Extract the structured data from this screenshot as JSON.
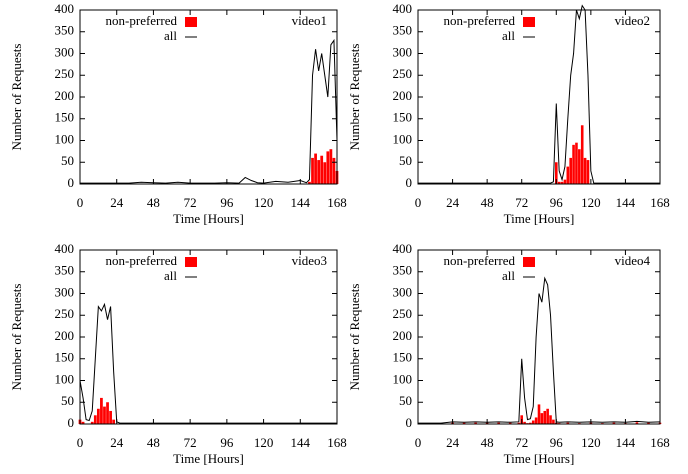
{
  "chart_data": [
    {
      "type": "combo",
      "title": "video1",
      "x_label": "Time [Hours]",
      "y_label": "Number of Requests",
      "legend": "top-left",
      "xlim": [
        0,
        168
      ],
      "ylim": [
        0,
        400
      ],
      "xticks": [
        0,
        24,
        48,
        72,
        96,
        120,
        144,
        168
      ],
      "yticks": [
        0,
        50,
        100,
        150,
        200,
        250,
        300,
        350,
        400
      ],
      "x": [
        0,
        8,
        16,
        24,
        32,
        40,
        48,
        56,
        64,
        72,
        80,
        88,
        96,
        104,
        108,
        112,
        116,
        120,
        128,
        136,
        144,
        148,
        150,
        152,
        154,
        156,
        158,
        160,
        162,
        164,
        166,
        168
      ],
      "series": [
        {
          "name": "non-preferred",
          "color": "#ff0000",
          "mark": "bar",
          "values": [
            0,
            0,
            0,
            0,
            0,
            0,
            0,
            0,
            0,
            0,
            0,
            0,
            0,
            0,
            0,
            0,
            0,
            0,
            0,
            0,
            0,
            0,
            5,
            60,
            70,
            55,
            65,
            50,
            75,
            80,
            60,
            30
          ]
        },
        {
          "name": "all",
          "color": "#000000",
          "mark": "line",
          "values": [
            2,
            2,
            2,
            2,
            2,
            4,
            3,
            2,
            4,
            2,
            2,
            2,
            3,
            2,
            15,
            8,
            3,
            2,
            6,
            4,
            8,
            3,
            10,
            250,
            310,
            260,
            300,
            250,
            200,
            320,
            330,
            100
          ]
        }
      ]
    },
    {
      "type": "combo",
      "title": "video2",
      "x_label": "Time [Hours]",
      "y_label": "Number of Requests",
      "legend": "top-left",
      "xlim": [
        0,
        168
      ],
      "ylim": [
        0,
        400
      ],
      "xticks": [
        0,
        24,
        48,
        72,
        96,
        120,
        144,
        168
      ],
      "yticks": [
        0,
        50,
        100,
        150,
        200,
        250,
        300,
        350,
        400
      ],
      "x": [
        0,
        8,
        16,
        24,
        32,
        40,
        48,
        56,
        64,
        72,
        80,
        88,
        92,
        94,
        96,
        98,
        100,
        102,
        104,
        106,
        108,
        110,
        112,
        114,
        116,
        118,
        120,
        122,
        128,
        136,
        144,
        152,
        160,
        168
      ],
      "series": [
        {
          "name": "non-preferred",
          "color": "#ff0000",
          "mark": "bar",
          "values": [
            0,
            0,
            0,
            0,
            0,
            0,
            0,
            0,
            0,
            0,
            0,
            0,
            0,
            0,
            50,
            5,
            5,
            10,
            40,
            60,
            90,
            95,
            80,
            135,
            60,
            55,
            0,
            0,
            0,
            0,
            0,
            0,
            0,
            0
          ]
        },
        {
          "name": "all",
          "color": "#000000",
          "mark": "line",
          "values": [
            2,
            2,
            2,
            2,
            2,
            2,
            2,
            2,
            2,
            2,
            2,
            2,
            2,
            5,
            185,
            30,
            10,
            40,
            150,
            250,
            300,
            400,
            380,
            410,
            400,
            250,
            30,
            2,
            2,
            2,
            2,
            2,
            2,
            2
          ]
        }
      ]
    },
    {
      "type": "combo",
      "title": "video3",
      "x_label": "Time [Hours]",
      "y_label": "Number of Requests",
      "legend": "top-left",
      "xlim": [
        0,
        168
      ],
      "ylim": [
        0,
        400
      ],
      "xticks": [
        0,
        24,
        48,
        72,
        96,
        120,
        144,
        168
      ],
      "yticks": [
        0,
        50,
        100,
        150,
        200,
        250,
        300,
        350,
        400
      ],
      "x": [
        0,
        2,
        4,
        6,
        8,
        10,
        12,
        14,
        16,
        18,
        20,
        22,
        24,
        26,
        32,
        40,
        48,
        56,
        64,
        72,
        80,
        88,
        96,
        104,
        112,
        120,
        128,
        136,
        144,
        152,
        160,
        168
      ],
      "series": [
        {
          "name": "non-preferred",
          "color": "#ff0000",
          "mark": "bar",
          "values": [
            10,
            5,
            0,
            0,
            5,
            20,
            35,
            60,
            40,
            50,
            30,
            10,
            0,
            0,
            0,
            0,
            0,
            0,
            0,
            0,
            0,
            0,
            0,
            0,
            0,
            0,
            0,
            0,
            0,
            0,
            0,
            0
          ]
        },
        {
          "name": "all",
          "color": "#000000",
          "mark": "line",
          "values": [
            100,
            60,
            10,
            8,
            30,
            150,
            270,
            260,
            275,
            240,
            270,
            120,
            5,
            2,
            2,
            2,
            2,
            2,
            2,
            2,
            2,
            2,
            2,
            2,
            2,
            2,
            2,
            2,
            2,
            2,
            2,
            2
          ]
        }
      ]
    },
    {
      "type": "combo",
      "title": "video4",
      "x_label": "Time [Hours]",
      "y_label": "Number of Requests",
      "legend": "top-left",
      "xlim": [
        0,
        168
      ],
      "ylim": [
        0,
        400
      ],
      "xticks": [
        0,
        24,
        48,
        72,
        96,
        120,
        144,
        168
      ],
      "yticks": [
        0,
        50,
        100,
        150,
        200,
        250,
        300,
        350,
        400
      ],
      "x": [
        0,
        8,
        16,
        24,
        32,
        40,
        48,
        56,
        64,
        70,
        72,
        74,
        76,
        78,
        80,
        82,
        84,
        86,
        88,
        90,
        92,
        94,
        96,
        98,
        104,
        112,
        120,
        128,
        136,
        144,
        152,
        160,
        168
      ],
      "series": [
        {
          "name": "non-preferred",
          "color": "#ff0000",
          "mark": "bar",
          "values": [
            0,
            0,
            2,
            3,
            3,
            3,
            3,
            3,
            3,
            3,
            20,
            5,
            2,
            3,
            8,
            15,
            45,
            25,
            30,
            35,
            20,
            10,
            3,
            2,
            3,
            2,
            3,
            2,
            3,
            2,
            4,
            3,
            3
          ]
        },
        {
          "name": "all",
          "color": "#000000",
          "mark": "line",
          "values": [
            2,
            2,
            2,
            5,
            4,
            5,
            4,
            5,
            4,
            5,
            150,
            60,
            10,
            12,
            40,
            200,
            300,
            280,
            335,
            320,
            250,
            120,
            5,
            4,
            5,
            4,
            5,
            4,
            5,
            4,
            6,
            4,
            5
          ]
        }
      ]
    }
  ]
}
